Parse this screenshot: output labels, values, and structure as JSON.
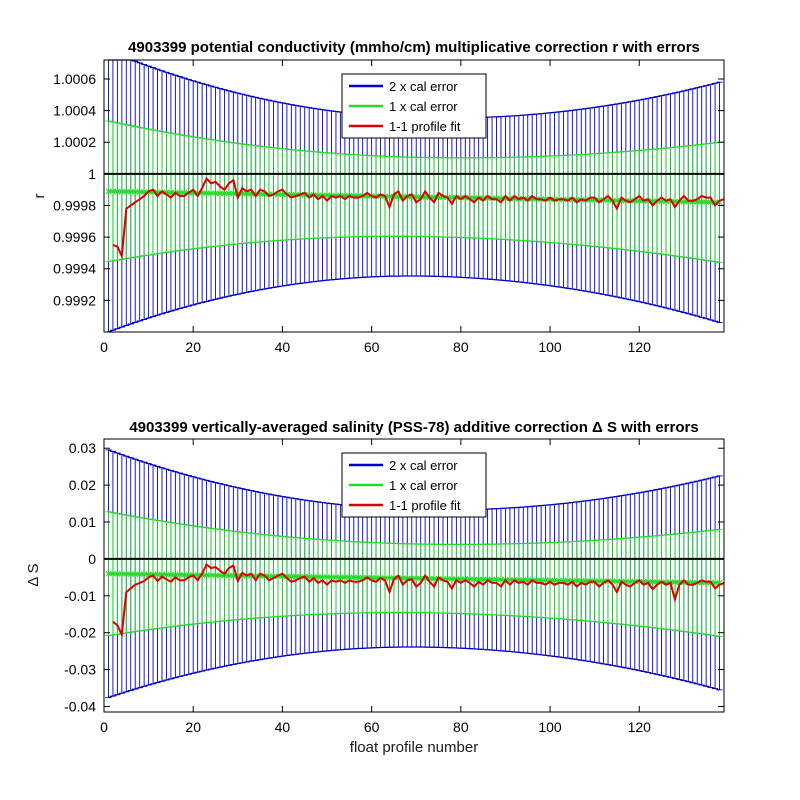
{
  "chart_data": [
    {
      "type": "line",
      "title": "4903399 potential conductivity (mmho/cm) multiplicative correction r with errors",
      "xlabel": "",
      "ylabel": "r",
      "xlim": [
        0,
        139
      ],
      "ylim": [
        0.999,
        1.00072
      ],
      "x_ticks": [
        0,
        20,
        40,
        60,
        80,
        100,
        120
      ],
      "y_ticks": [
        0.9992,
        0.9994,
        0.9996,
        0.9998,
        1,
        1.0002,
        1.0004,
        1.0006
      ],
      "y_tick_labels": [
        "0.9992",
        "0.9994",
        "0.9996",
        "0.9998",
        "1",
        "1.0002",
        "1.0004",
        "1.0006"
      ],
      "reference_line": 1,
      "center": {
        "start": 0.99989,
        "end": 0.99982
      },
      "error_1x": {
        "start": 0.00045,
        "min": 0.00025,
        "min_at": 72,
        "end": 0.00038
      },
      "error_2x": {
        "start": 0.0009,
        "min": 0.0005,
        "min_at": 72,
        "end": 0.00076
      },
      "legend": {
        "position": "top-center",
        "entries": [
          {
            "label": "2 x cal error",
            "color": "#0000cc"
          },
          {
            "label": "1 x cal error",
            "color": "#22dd22"
          },
          {
            "label": "1-1 profile fit",
            "color": "#dd0000"
          }
        ]
      },
      "series": [
        {
          "name": "1-1 profile fit",
          "x_start": 2,
          "values": [
            0.99955,
            0.99954,
            0.99948,
            0.99978,
            0.9998,
            0.99982,
            0.99984,
            0.99986,
            0.99989,
            0.9999,
            0.99986,
            0.99989,
            0.99987,
            0.99985,
            0.99988,
            0.99986,
            0.99986,
            0.99988,
            0.9999,
            0.99986,
            0.99991,
            0.99997,
            0.99994,
            0.99995,
            0.99992,
            0.9999,
            0.99994,
            0.99996,
            0.99985,
            0.99991,
            0.99989,
            0.9999,
            0.99986,
            0.9999,
            0.99989,
            0.99986,
            0.99987,
            0.99989,
            0.9999,
            0.99987,
            0.99985,
            0.99986,
            0.99987,
            0.99988,
            0.99985,
            0.99987,
            0.99984,
            0.99986,
            0.99983,
            0.99986,
            0.99985,
            0.99986,
            0.99984,
            0.99986,
            0.99985,
            0.99985,
            0.99986,
            0.99988,
            0.99986,
            0.99985,
            0.99987,
            0.99986,
            0.99979,
            0.99987,
            0.99989,
            0.99983,
            0.99986,
            0.99987,
            0.99982,
            0.99984,
            0.99989,
            0.99985,
            0.99982,
            0.99988,
            0.99986,
            0.99985,
            0.99981,
            0.99986,
            0.99984,
            0.99986,
            0.99984,
            0.99982,
            0.99985,
            0.99983,
            0.99986,
            0.99984,
            0.99984,
            0.99982,
            0.99986,
            0.99983,
            0.99986,
            0.99984,
            0.99985,
            0.99983,
            0.99986,
            0.99984,
            0.99984,
            0.99983,
            0.99985,
            0.99983,
            0.99984,
            0.99984,
            0.99983,
            0.99985,
            0.99982,
            0.99984,
            0.99983,
            0.99985,
            0.99985,
            0.99982,
            0.99984,
            0.99986,
            0.99983,
            0.99978,
            0.99985,
            0.99983,
            0.99982,
            0.99984,
            0.99986,
            0.99983,
            0.99984,
            0.9998,
            0.99983,
            0.99985,
            0.99983,
            0.99984,
            0.99979,
            0.99983,
            0.99986,
            0.99983,
            0.99983,
            0.99984,
            0.99986,
            0.99985,
            0.99985,
            0.9998,
            0.99983,
            0.99984
          ]
        }
      ]
    },
    {
      "type": "line",
      "title": "4903399 vertically-averaged salinity (PSS-78) additive correction Δ S with errors",
      "xlabel": "float profile number",
      "ylabel": "Δ S",
      "xlim": [
        0,
        139
      ],
      "ylim": [
        -0.0415,
        0.0325
      ],
      "x_ticks": [
        0,
        20,
        40,
        60,
        80,
        100,
        120
      ],
      "y_ticks": [
        -0.04,
        -0.03,
        -0.02,
        -0.01,
        0,
        0.01,
        0.02,
        0.03
      ],
      "y_tick_labels": [
        "-0.04",
        "-0.03",
        "-0.02",
        "-0.01",
        "0",
        "0.01",
        "0.02",
        "0.03"
      ],
      "reference_line": 0,
      "center": {
        "start": -0.004,
        "end": -0.0065
      },
      "error_1x": {
        "start": 0.017,
        "min": 0.0093,
        "min_at": 72,
        "end": 0.0145
      },
      "error_2x": {
        "start": 0.034,
        "min": 0.0186,
        "min_at": 72,
        "end": 0.029
      },
      "legend": {
        "position": "top-center",
        "entries": [
          {
            "label": "2 x cal error",
            "color": "#0000cc"
          },
          {
            "label": "1 x cal error",
            "color": "#22dd22"
          },
          {
            "label": "1-1 profile fit",
            "color": "#dd0000"
          }
        ]
      },
      "series": [
        {
          "name": "1-1 profile fit",
          "x_start": 2,
          "values": [
            -0.017,
            -0.018,
            -0.0205,
            -0.009,
            -0.008,
            -0.007,
            -0.0065,
            -0.006,
            -0.005,
            -0.0045,
            -0.006,
            -0.0048,
            -0.0055,
            -0.0062,
            -0.005,
            -0.0058,
            -0.0058,
            -0.005,
            -0.0045,
            -0.0058,
            -0.004,
            -0.0015,
            -0.0025,
            -0.0022,
            -0.0032,
            -0.004,
            -0.0025,
            -0.0018,
            -0.006,
            -0.0038,
            -0.0045,
            -0.004,
            -0.0058,
            -0.004,
            -0.0045,
            -0.0058,
            -0.0052,
            -0.0045,
            -0.004,
            -0.0052,
            -0.0062,
            -0.0058,
            -0.0052,
            -0.0048,
            -0.0062,
            -0.0052,
            -0.0065,
            -0.0058,
            -0.007,
            -0.0058,
            -0.0062,
            -0.0058,
            -0.0065,
            -0.0058,
            -0.0062,
            -0.0062,
            -0.0058,
            -0.005,
            -0.0058,
            -0.0062,
            -0.0052,
            -0.0058,
            -0.009,
            -0.0055,
            -0.0045,
            -0.007,
            -0.0058,
            -0.0055,
            -0.0075,
            -0.0065,
            -0.0045,
            -0.0062,
            -0.0075,
            -0.005,
            -0.0058,
            -0.0062,
            -0.008,
            -0.0058,
            -0.0065,
            -0.0058,
            -0.0065,
            -0.0075,
            -0.0062,
            -0.007,
            -0.0058,
            -0.0065,
            -0.0065,
            -0.0075,
            -0.0058,
            -0.007,
            -0.0058,
            -0.0065,
            -0.0062,
            -0.007,
            -0.0058,
            -0.0065,
            -0.0065,
            -0.007,
            -0.0062,
            -0.007,
            -0.0065,
            -0.0065,
            -0.007,
            -0.0062,
            -0.0075,
            -0.0065,
            -0.007,
            -0.0062,
            -0.0062,
            -0.0075,
            -0.0065,
            -0.0058,
            -0.007,
            -0.009,
            -0.0062,
            -0.007,
            -0.0075,
            -0.0065,
            -0.0058,
            -0.007,
            -0.0065,
            -0.0082,
            -0.007,
            -0.0062,
            -0.007,
            -0.0065,
            -0.011,
            -0.007,
            -0.0058,
            -0.007,
            -0.007,
            -0.0065,
            -0.0058,
            -0.0062,
            -0.0062,
            -0.008,
            -0.007,
            -0.0065
          ]
        }
      ]
    }
  ]
}
